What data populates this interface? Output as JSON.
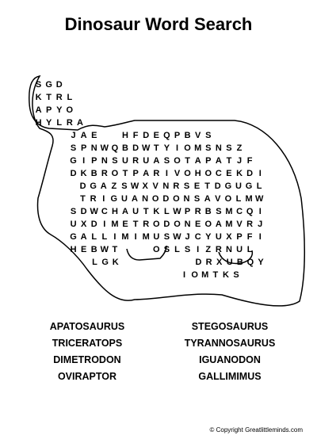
{
  "title": "Dinosaur Word Search",
  "grid_rows": [
    "SGD",
    "KTRL",
    "APYO",
    "HYLRA",
    "JAE  HFDEQPBVS",
    "SPNWQBDWTYIOMSNSZ",
    "GIPNSURUASOTAPATJF",
    "DKBROTPARIVOHOCEKDI",
    "DGAZSWXVNRSETDGUGL",
    "TRIGUANODONSAVOLMW",
    "SDWCHAUTKLWPRBSMCQI",
    "UXDIMETRODONEOAMVRJ",
    "GALLIMIMUSWJCYUXPFI",
    "HEBWT   OSLSIZRNUL",
    "LGK       DRXUBQY",
    "IOMTKS"
  ],
  "words_left": [
    "APATOSAURUS",
    "TRICERATOPS",
    "DIMETRODON",
    "OVIRAPTOR"
  ],
  "words_right": [
    "STEGOSAURUS",
    "TYRANNOSAURUS",
    "IGUANODON",
    "GALLIMIMUS"
  ],
  "copyright": "© Copyright Greatlittleminds.com",
  "colors": {
    "ink": "#000000",
    "background": "#ffffff"
  }
}
